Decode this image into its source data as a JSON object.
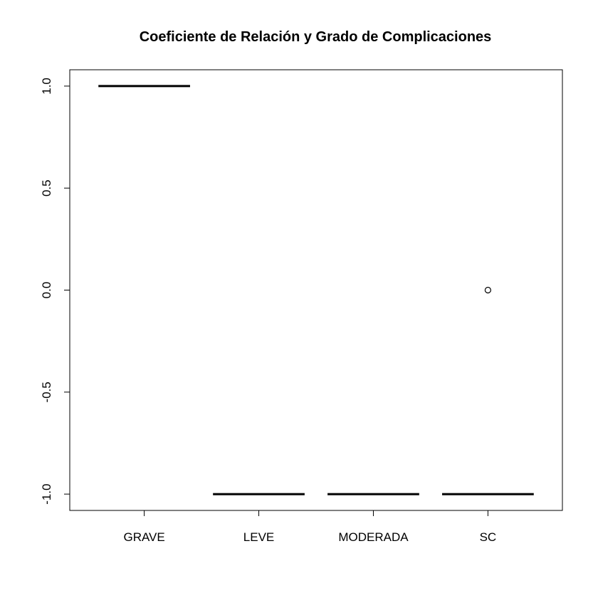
{
  "chart_data": {
    "type": "boxplot",
    "title": "Coeficiente de Relación y Grado de Complicaciones",
    "xlabel": "",
    "ylabel": "",
    "categories": [
      "GRAVE",
      "LEVE",
      "MODERADA",
      "SC"
    ],
    "boxes": [
      {
        "category": "GRAVE",
        "min": 1.0,
        "q1": 1.0,
        "median": 1.0,
        "q3": 1.0,
        "max": 1.0,
        "outliers": []
      },
      {
        "category": "LEVE",
        "min": -1.0,
        "q1": -1.0,
        "median": -1.0,
        "q3": -1.0,
        "max": -1.0,
        "outliers": []
      },
      {
        "category": "MODERADA",
        "min": -1.0,
        "q1": -1.0,
        "median": -1.0,
        "q3": -1.0,
        "max": -1.0,
        "outliers": []
      },
      {
        "category": "SC",
        "min": -1.0,
        "q1": -1.0,
        "median": -1.0,
        "q3": -1.0,
        "max": -1.0,
        "outliers": [
          0.0
        ]
      }
    ],
    "yticks": [
      -1.0,
      -0.5,
      0.0,
      0.5,
      1.0
    ],
    "ytick_labels": [
      "-1.0",
      "-0.5",
      "0.0",
      "0.5",
      "1.0"
    ],
    "ylim": [
      -1.08,
      1.08
    ],
    "grid": false,
    "legend": "none"
  }
}
